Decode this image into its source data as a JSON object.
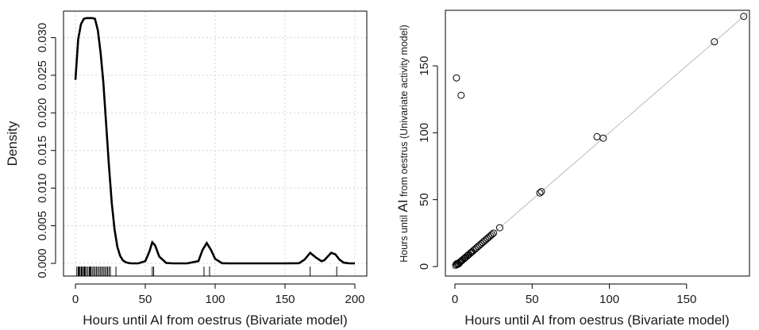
{
  "chart_data": [
    {
      "type": "line",
      "subtype": "kernel density with rug",
      "xlabel": "Hours until AI from oestrus (Bivariate model)",
      "ylabel": "Density",
      "xlim": [
        0,
        200
      ],
      "ylim": [
        0,
        0.033
      ],
      "xticks": [
        "0",
        "50",
        "100",
        "150",
        "200"
      ],
      "yticks": [
        "0.000",
        "0.005",
        "0.010",
        "0.015",
        "0.020",
        "0.025",
        "0.030"
      ],
      "grid": true,
      "line_color": "#000000",
      "series": [
        {
          "x": [
            0,
            2,
            4,
            6,
            8,
            10,
            12,
            14,
            16,
            18,
            20,
            22,
            24,
            26,
            28,
            30,
            32,
            34,
            36,
            38,
            40,
            45,
            50,
            53,
            55,
            57,
            60,
            65,
            70,
            80,
            88,
            91,
            94,
            97,
            100,
            105,
            110,
            120,
            130,
            140,
            150,
            160,
            164,
            168,
            172,
            176,
            178,
            183,
            186,
            189,
            192,
            196,
            200
          ],
          "y": [
            0.0244,
            0.0298,
            0.0318,
            0.0325,
            0.0326,
            0.0326,
            0.0326,
            0.0325,
            0.031,
            0.028,
            0.024,
            0.0185,
            0.013,
            0.008,
            0.0045,
            0.0022,
            0.001,
            0.0004,
            0.00015,
            5e-05,
            0.0,
            0.0,
            0.0003,
            0.0016,
            0.0028,
            0.0024,
            0.0009,
            5e-05,
            0.0,
            0.0,
            0.0003,
            0.0018,
            0.0027,
            0.0018,
            0.0006,
            2e-05,
            0.0,
            0.0,
            0.0,
            0.0,
            0.0,
            2e-05,
            0.0005,
            0.0014,
            0.0008,
            0.0003,
            0.0004,
            0.0014,
            0.0012,
            0.0005,
            0.0001,
            0.0,
            0.0
          ]
        }
      ],
      "rug": [
        1,
        2,
        2.5,
        3,
        4,
        4.5,
        5,
        6,
        6.5,
        7,
        8,
        9,
        10,
        10.5,
        11,
        12,
        13,
        14,
        15,
        16,
        17,
        18,
        19,
        20,
        21,
        22,
        23,
        24,
        25,
        29,
        55,
        56,
        92,
        96,
        168,
        187
      ]
    },
    {
      "type": "scatter",
      "xlabel": "Hours until AI from oestrus (Bivariate model)",
      "ylabel_parts": [
        "Hours until ",
        "AI",
        " from oestrus (Univariate activity model)"
      ],
      "xlim": [
        -4,
        190
      ],
      "ylim": [
        -2,
        190
      ],
      "xticks": [
        "0",
        "50",
        "100",
        "150"
      ],
      "yticks": [
        "0",
        "50",
        "100",
        "150"
      ],
      "reference_line": "y = x",
      "reference_line_color": "#bbbbbb",
      "marker": "open circle",
      "points": [
        [
          1,
          141
        ],
        [
          4,
          128
        ],
        [
          0.5,
          1
        ],
        [
          1,
          2
        ],
        [
          1.5,
          1.5
        ],
        [
          2,
          2.5
        ],
        [
          2.5,
          2
        ],
        [
          3,
          3
        ],
        [
          3.5,
          3.5
        ],
        [
          4,
          4
        ],
        [
          4.5,
          4.5
        ],
        [
          5,
          5
        ],
        [
          6,
          6
        ],
        [
          6.5,
          6.5
        ],
        [
          7,
          7
        ],
        [
          8,
          8
        ],
        [
          8.5,
          8.5
        ],
        [
          9,
          9
        ],
        [
          10,
          10
        ],
        [
          10.5,
          10.5
        ],
        [
          11,
          11
        ],
        [
          12,
          12
        ],
        [
          13,
          13
        ],
        [
          14,
          14
        ],
        [
          15,
          15
        ],
        [
          16,
          16
        ],
        [
          17,
          17
        ],
        [
          18,
          18
        ],
        [
          19,
          19
        ],
        [
          20,
          20
        ],
        [
          21,
          21
        ],
        [
          22,
          22
        ],
        [
          23,
          23
        ],
        [
          24,
          24
        ],
        [
          25,
          25
        ],
        [
          29,
          29
        ],
        [
          55,
          55
        ],
        [
          56,
          56
        ],
        [
          92,
          97
        ],
        [
          96,
          96
        ],
        [
          168,
          168
        ],
        [
          187,
          187
        ]
      ]
    }
  ]
}
